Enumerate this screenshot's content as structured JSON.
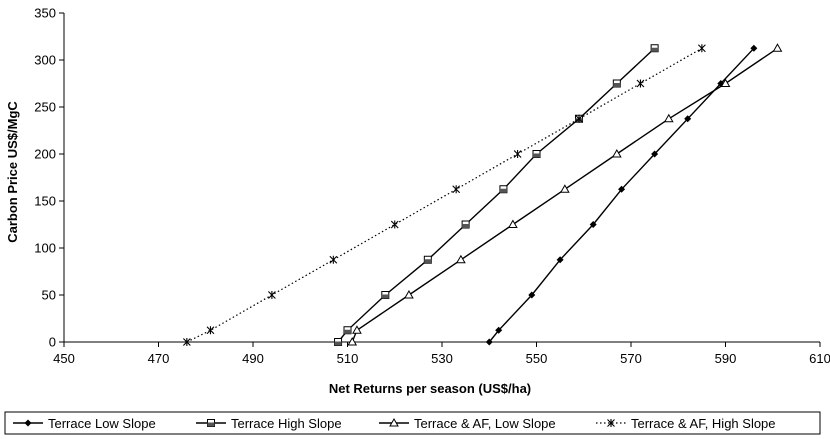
{
  "chart_data": {
    "type": "line",
    "xlabel": "Net Returns per season (US$/ha)",
    "ylabel": "Carbon Price US$/MgC",
    "xlim": [
      450,
      610
    ],
    "ylim": [
      0,
      350
    ],
    "xticks": [
      450,
      470,
      490,
      510,
      530,
      550,
      570,
      590,
      610
    ],
    "yticks": [
      0,
      50,
      100,
      150,
      200,
      250,
      300,
      350
    ],
    "grid": false,
    "legend_position": "bottom",
    "series": [
      {
        "name": "Terrace Low Slope",
        "marker": "diamond",
        "line": "solid",
        "x": [
          540,
          542,
          549,
          555,
          562,
          568,
          575,
          582,
          589,
          596
        ],
        "y": [
          0,
          12.5,
          50,
          87.5,
          125,
          162.5,
          200,
          237.5,
          275,
          312.5
        ]
      },
      {
        "name": "Terrace High Slope",
        "marker": "square",
        "line": "solid",
        "x": [
          508,
          510,
          518,
          527,
          535,
          543,
          550,
          559,
          567,
          575
        ],
        "y": [
          0,
          12.5,
          50,
          87.5,
          125,
          162.5,
          200,
          237.5,
          275,
          312.5
        ]
      },
      {
        "name": "Terrace & AF, Low Slope",
        "marker": "triangle",
        "line": "solid",
        "x": [
          511,
          512,
          523,
          534,
          545,
          556,
          567,
          578,
          590,
          601
        ],
        "y": [
          0,
          12.5,
          50,
          87.5,
          125,
          162.5,
          200,
          237.5,
          275,
          312.5
        ]
      },
      {
        "name": "Terrace & AF, High Slope",
        "marker": "asterisk",
        "line": "dotted",
        "x": [
          476,
          481,
          494,
          507,
          520,
          533,
          546,
          559,
          572,
          585
        ],
        "y": [
          0,
          12.5,
          50,
          87.5,
          125,
          162.5,
          200,
          237.5,
          275,
          312.5
        ]
      }
    ]
  }
}
